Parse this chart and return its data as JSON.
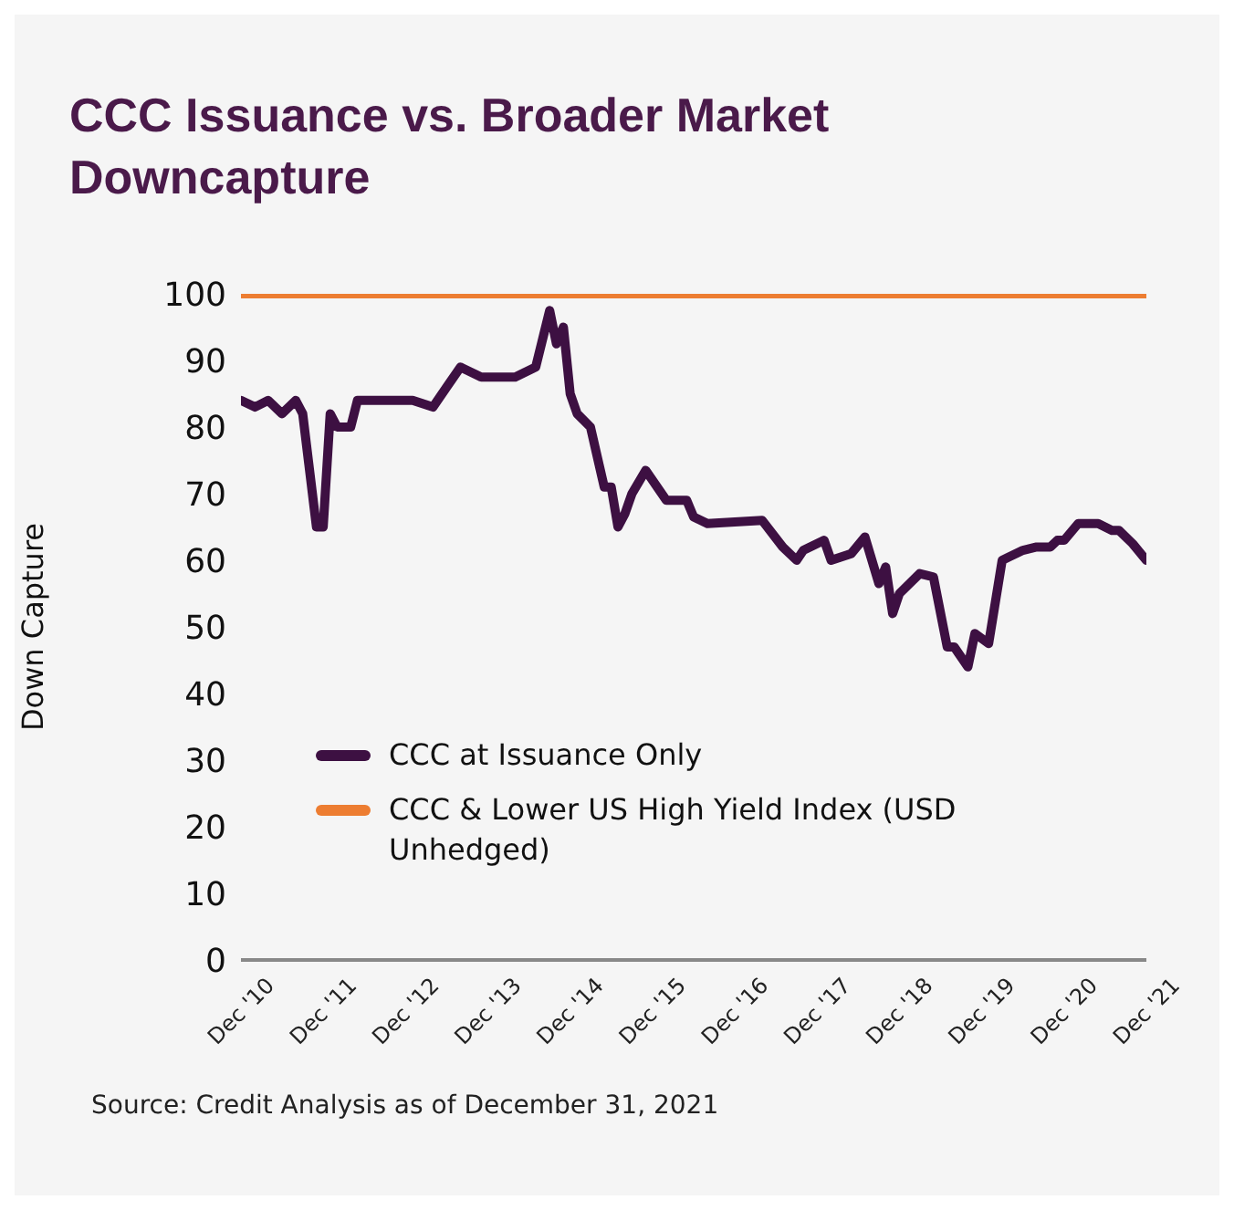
{
  "chart_data": {
    "type": "line",
    "title": "CCC Issuance vs. Broader Market Downcapture",
    "ylabel": "Down Capture",
    "annotations": [
      "Source: Credit Analysis as of December 31, 2021"
    ],
    "legend": "bottom",
    "grid": false,
    "ylim": [
      0,
      100
    ],
    "yticks": [
      0,
      10,
      20,
      30,
      40,
      50,
      60,
      70,
      80,
      90,
      100
    ],
    "xlim": [
      "2010-12",
      "2021-12"
    ],
    "xticks": [
      {
        "value": "2010-12",
        "label": "Dec '10"
      },
      {
        "value": "2011-12",
        "label": "Dec '11"
      },
      {
        "value": "2012-12",
        "label": "Dec '12"
      },
      {
        "value": "2013-12",
        "label": "Dec '13"
      },
      {
        "value": "2014-12",
        "label": "Dec '14"
      },
      {
        "value": "2015-12",
        "label": "Dec '15"
      },
      {
        "value": "2016-12",
        "label": "Dec '16"
      },
      {
        "value": "2017-12",
        "label": "Dec '17"
      },
      {
        "value": "2018-12",
        "label": "Dec '18"
      },
      {
        "value": "2019-12",
        "label": "Dec '19"
      },
      {
        "value": "2020-12",
        "label": "Dec '20"
      },
      {
        "value": "2021-12",
        "label": "Dec '21"
      }
    ],
    "series": [
      {
        "name": "CCC at Issuance Only",
        "color": "#3d1042",
        "x": [
          "2010-12",
          "2011-02",
          "2011-04",
          "2011-06",
          "2011-08",
          "2011-09",
          "2011-11",
          "2011-12",
          "2012-01",
          "2012-02",
          "2012-04",
          "2012-05",
          "2013-01",
          "2013-04",
          "2013-06",
          "2013-08",
          "2013-11",
          "2014-04",
          "2014-07",
          "2014-09",
          "2014-10",
          "2014-11",
          "2014-12",
          "2015-01",
          "2015-03",
          "2015-05",
          "2015-06",
          "2015-07",
          "2015-08",
          "2015-09",
          "2015-11",
          "2016-02",
          "2016-05",
          "2016-06",
          "2016-08",
          "2017-04",
          "2017-07",
          "2017-09",
          "2017-10",
          "2018-01",
          "2018-02",
          "2018-05",
          "2018-07",
          "2018-09",
          "2018-10",
          "2018-11",
          "2018-12",
          "2019-03",
          "2019-05",
          "2019-07",
          "2019-08",
          "2019-10",
          "2019-11",
          "2020-01",
          "2020-03",
          "2020-04",
          "2020-06",
          "2020-08",
          "2020-10",
          "2020-11",
          "2020-12",
          "2021-02",
          "2021-05",
          "2021-07",
          "2021-08",
          "2021-10",
          "2021-12"
        ],
        "values": [
          84,
          83,
          84,
          82,
          84,
          82,
          65,
          65,
          82,
          80,
          80,
          84,
          84,
          83,
          86,
          89,
          87.5,
          87.5,
          89,
          97.5,
          92.5,
          95,
          85,
          82,
          80,
          71,
          71,
          65,
          67,
          70,
          73.5,
          69,
          69,
          66.5,
          65.5,
          66,
          62,
          60,
          61.5,
          63,
          60,
          61,
          63.5,
          56.5,
          59,
          52,
          55,
          58,
          57.5,
          47,
          47,
          44,
          49,
          47.5,
          60,
          60.5,
          61.5,
          62,
          62,
          63,
          63,
          65.5,
          65.5,
          64.5,
          64.5,
          62.5,
          60
        ]
      },
      {
        "name": "CCC & Lower US High Yield Index (USD Unhedged)",
        "color": "#ed7d31",
        "x": [
          "2010-12",
          "2021-12"
        ],
        "values": [
          100,
          100
        ]
      }
    ]
  }
}
